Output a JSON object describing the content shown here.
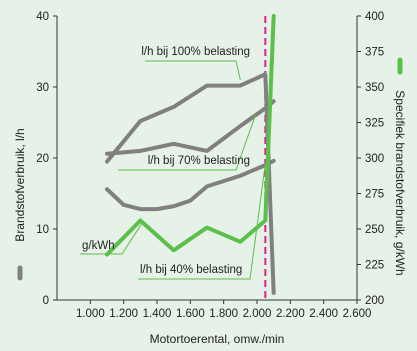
{
  "chart_data": {
    "type": "line",
    "xlabel": "Motortoerental, omw./min",
    "ylabel_left": "Brandstofverbruik, l/h",
    "ylabel_right": "Specifiek brandstofverbruik, g/kWh",
    "xlim": [
      800,
      2600
    ],
    "ylim_left": [
      0,
      40
    ],
    "ylim_right": [
      200,
      400
    ],
    "x_ticks": [
      1000,
      1200,
      1400,
      1600,
      1800,
      2000,
      2200,
      2400,
      2600
    ],
    "x_tick_labels": [
      "1.000",
      "1.200",
      "1.400",
      "1.600",
      "1.800",
      "2.000",
      "2.200",
      "2.400",
      "2.600"
    ],
    "y_left_ticks": [
      0,
      10,
      20,
      30,
      40
    ],
    "y_left_tick_labels": [
      "0",
      "10",
      "20",
      "30",
      "40"
    ],
    "y_right_ticks": [
      200,
      225,
      250,
      275,
      300,
      325,
      350,
      375,
      400
    ],
    "y_right_tick_labels": [
      "200",
      "225",
      "250",
      "275",
      "300",
      "325",
      "350",
      "375",
      "400"
    ],
    "colors": {
      "load_lines": "#808080",
      "specific": "#5cbf4a",
      "marker": "#e0218a",
      "axis": "#333333"
    },
    "grid": false,
    "vertical_marker_x": 2050,
    "series": [
      {
        "name": "l/h bij 100% belasting",
        "axis": "left",
        "x": [
          1100,
          1300,
          1500,
          1700,
          1900,
          2050,
          2100
        ],
        "y": [
          19.5,
          25.2,
          27.2,
          30.2,
          30.2,
          31.8,
          1.0
        ]
      },
      {
        "name": "l/h bij 70% belasting",
        "axis": "left",
        "x": [
          1100,
          1300,
          1500,
          1700,
          1900,
          2050,
          2100
        ],
        "y": [
          20.6,
          21.0,
          22.0,
          21.0,
          24.5,
          27.0,
          28.0
        ]
      },
      {
        "name": "l/h bij 40% belasting",
        "axis": "left",
        "x": [
          1100,
          1200,
          1300,
          1400,
          1500,
          1600,
          1700,
          1900,
          2050,
          2100
        ],
        "y": [
          15.6,
          13.4,
          12.8,
          12.8,
          13.2,
          14.0,
          16.0,
          17.5,
          19.0,
          19.6
        ]
      },
      {
        "name": "g/kWh",
        "axis": "right",
        "x": [
          1100,
          1300,
          1500,
          1700,
          1900,
          2050,
          2100
        ],
        "y": [
          232,
          256,
          235,
          251,
          241,
          256,
          400
        ]
      }
    ],
    "annotations": [
      {
        "text": "l/h bij 100% belasting",
        "series": 0
      },
      {
        "text": "l/h bij 70% belasting",
        "series": 1
      },
      {
        "text": "l/h bij 40% belasting",
        "series": 2
      },
      {
        "text": "g/kWh",
        "series": 3
      }
    ]
  }
}
